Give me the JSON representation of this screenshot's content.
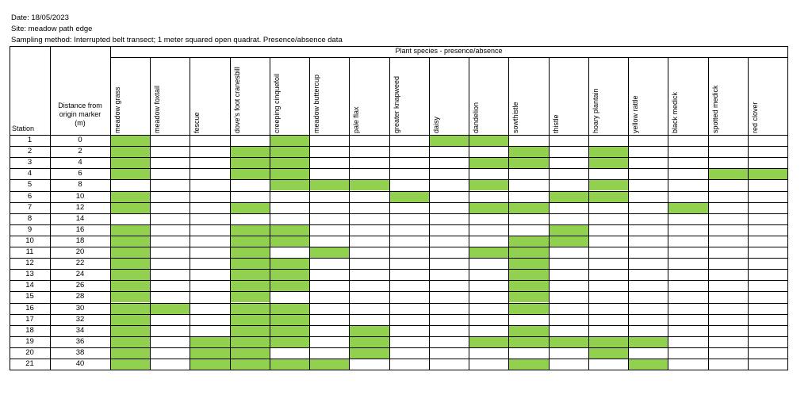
{
  "meta": {
    "date": "Date:  18/05/2023",
    "site": "Site: meadow path edge",
    "method": "Sampling method: Interrupted belt transect; 1 meter squared open quadrat. Presence/absence data"
  },
  "table": {
    "group_header": "Plant species - presence/absence",
    "station_header": "Station",
    "distance_header": [
      "Distance from",
      "origin marker",
      "(m)"
    ],
    "presence_color": "#92D050",
    "species": [
      "meadow grass",
      "meadow foxtail",
      "fescue",
      "dove's foot cranesbill",
      "creeping cinquefoil",
      "meadow buttercup",
      "pale flax",
      "greater knapweed",
      "daisy",
      "dandelion",
      "sowthistle",
      "thistle",
      "hoary plantain",
      "yellow rattle",
      "black medick",
      "spotted medick",
      "red clover"
    ],
    "rows": [
      {
        "station": "1",
        "distance": "0",
        "present": [
          1,
          0,
          0,
          0,
          1,
          0,
          0,
          0,
          1,
          1,
          0,
          0,
          0,
          0,
          0,
          0,
          0
        ]
      },
      {
        "station": "2",
        "distance": "2",
        "present": [
          1,
          0,
          0,
          1,
          1,
          0,
          0,
          0,
          0,
          0,
          1,
          0,
          1,
          0,
          0,
          0,
          0
        ]
      },
      {
        "station": "3",
        "distance": "4",
        "present": [
          1,
          0,
          0,
          1,
          1,
          0,
          0,
          0,
          0,
          1,
          1,
          0,
          1,
          0,
          0,
          0,
          0
        ]
      },
      {
        "station": "4",
        "distance": "6",
        "present": [
          1,
          0,
          0,
          1,
          1,
          0,
          0,
          0,
          0,
          0,
          0,
          0,
          0,
          0,
          0,
          1,
          1
        ]
      },
      {
        "station": "5",
        "distance": "8",
        "present": [
          0,
          0,
          0,
          0,
          1,
          1,
          1,
          0,
          0,
          1,
          0,
          0,
          1,
          0,
          0,
          0,
          0
        ]
      },
      {
        "station": "6",
        "distance": "10",
        "present": [
          1,
          0,
          0,
          0,
          0,
          0,
          0,
          1,
          0,
          0,
          0,
          1,
          1,
          0,
          0,
          0,
          0
        ]
      },
      {
        "station": "7",
        "distance": "12",
        "present": [
          1,
          0,
          0,
          1,
          0,
          0,
          0,
          0,
          0,
          1,
          1,
          0,
          0,
          0,
          1,
          0,
          0
        ]
      },
      {
        "station": "8",
        "distance": "14",
        "present": [
          0,
          0,
          0,
          0,
          0,
          0,
          0,
          0,
          0,
          0,
          0,
          0,
          0,
          0,
          0,
          0,
          0
        ]
      },
      {
        "station": "9",
        "distance": "16",
        "present": [
          1,
          0,
          0,
          1,
          1,
          0,
          0,
          0,
          0,
          0,
          0,
          1,
          0,
          0,
          0,
          0,
          0
        ]
      },
      {
        "station": "10",
        "distance": "18",
        "present": [
          1,
          0,
          0,
          1,
          1,
          0,
          0,
          0,
          0,
          0,
          1,
          1,
          0,
          0,
          0,
          0,
          0
        ]
      },
      {
        "station": "11",
        "distance": "20",
        "present": [
          1,
          0,
          0,
          1,
          0,
          1,
          0,
          0,
          0,
          1,
          1,
          0,
          0,
          0,
          0,
          0,
          0
        ]
      },
      {
        "station": "12",
        "distance": "22",
        "present": [
          1,
          0,
          0,
          1,
          1,
          0,
          0,
          0,
          0,
          0,
          1,
          0,
          0,
          0,
          0,
          0,
          0
        ]
      },
      {
        "station": "13",
        "distance": "24",
        "present": [
          1,
          0,
          0,
          1,
          1,
          0,
          0,
          0,
          0,
          0,
          1,
          0,
          0,
          0,
          0,
          0,
          0
        ]
      },
      {
        "station": "14",
        "distance": "26",
        "present": [
          1,
          0,
          0,
          1,
          1,
          0,
          0,
          0,
          0,
          0,
          1,
          0,
          0,
          0,
          0,
          0,
          0
        ]
      },
      {
        "station": "15",
        "distance": "28",
        "present": [
          1,
          0,
          0,
          1,
          0,
          0,
          0,
          0,
          0,
          0,
          1,
          0,
          0,
          0,
          0,
          0,
          0
        ]
      },
      {
        "station": "16",
        "distance": "30",
        "present": [
          1,
          1,
          0,
          1,
          1,
          0,
          0,
          0,
          0,
          0,
          1,
          0,
          0,
          0,
          0,
          0,
          0
        ]
      },
      {
        "station": "17",
        "distance": "32",
        "present": [
          1,
          0,
          0,
          1,
          1,
          0,
          0,
          0,
          0,
          0,
          0,
          0,
          0,
          0,
          0,
          0,
          0
        ]
      },
      {
        "station": "18",
        "distance": "34",
        "present": [
          1,
          0,
          0,
          1,
          1,
          0,
          1,
          0,
          0,
          0,
          1,
          0,
          0,
          0,
          0,
          0,
          0
        ]
      },
      {
        "station": "19",
        "distance": "36",
        "present": [
          1,
          0,
          1,
          1,
          1,
          0,
          1,
          0,
          0,
          1,
          1,
          1,
          1,
          1,
          0,
          0,
          0
        ]
      },
      {
        "station": "20",
        "distance": "38",
        "present": [
          1,
          0,
          1,
          1,
          0,
          0,
          1,
          0,
          0,
          0,
          0,
          0,
          1,
          0,
          0,
          0,
          0
        ]
      },
      {
        "station": "21",
        "distance": "40",
        "present": [
          1,
          0,
          1,
          1,
          1,
          1,
          0,
          0,
          0,
          0,
          1,
          0,
          0,
          1,
          0,
          0,
          0
        ]
      }
    ]
  }
}
